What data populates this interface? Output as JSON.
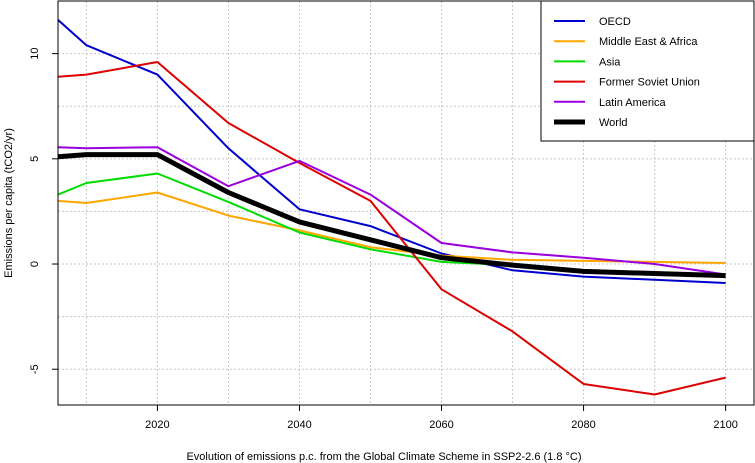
{
  "chart_data": {
    "type": "line",
    "xlabel": "Evolution of  emissions  p.c. from the Global Climate Scheme in SSP2-2.6 (1.8 °C)",
    "ylabel": "Emissions per capita (tCO2/yr)",
    "xlim": [
      2006,
      2104
    ],
    "ylim": [
      -6.7,
      12.5
    ],
    "x_ticks": [
      2020,
      2040,
      2060,
      2080,
      2100
    ],
    "x_tick_labels": [
      "2020",
      "2040",
      "2060",
      "2080",
      "2100"
    ],
    "y_ticks": [
      -5,
      0,
      5,
      10
    ],
    "y_tick_labels": [
      "-5",
      "0",
      "5",
      "10"
    ],
    "grid": true,
    "legend_position": "top-right",
    "x": [
      2006,
      2010,
      2020,
      2030,
      2040,
      2050,
      2060,
      2070,
      2080,
      2090,
      2100
    ],
    "series": [
      {
        "name": "OECD",
        "color": "#0000cc",
        "width": 2,
        "values": [
          11.6,
          10.4,
          9.0,
          5.5,
          2.6,
          1.8,
          0.5,
          -0.3,
          -0.6,
          -0.75,
          -0.9
        ]
      },
      {
        "name": "Middle East & Africa",
        "color": "#ffa500",
        "width": 2,
        "values": [
          3.0,
          2.9,
          3.4,
          2.3,
          1.6,
          0.8,
          0.4,
          0.2,
          0.15,
          0.1,
          0.05
        ]
      },
      {
        "name": "Asia",
        "color": "#00dd00",
        "width": 2,
        "values": [
          3.3,
          3.85,
          4.3,
          2.95,
          1.5,
          0.7,
          0.1,
          -0.05,
          -0.3,
          -0.4,
          -0.6
        ]
      },
      {
        "name": "Former Soviet Union",
        "color": "#dd0000",
        "width": 2,
        "values": [
          8.9,
          9.0,
          9.6,
          6.7,
          4.8,
          3.0,
          -1.2,
          -3.2,
          -5.7,
          -6.2,
          -5.4
        ]
      },
      {
        "name": "Latin America",
        "color": "#9900dd",
        "width": 2,
        "values": [
          5.55,
          5.5,
          5.55,
          3.7,
          4.9,
          3.3,
          1.0,
          0.55,
          0.3,
          0.0,
          -0.5
        ]
      },
      {
        "name": "World",
        "color": "#000000",
        "width": 5,
        "values": [
          5.1,
          5.2,
          5.2,
          3.4,
          2.0,
          1.15,
          0.3,
          -0.05,
          -0.35,
          -0.45,
          -0.55
        ]
      }
    ]
  }
}
